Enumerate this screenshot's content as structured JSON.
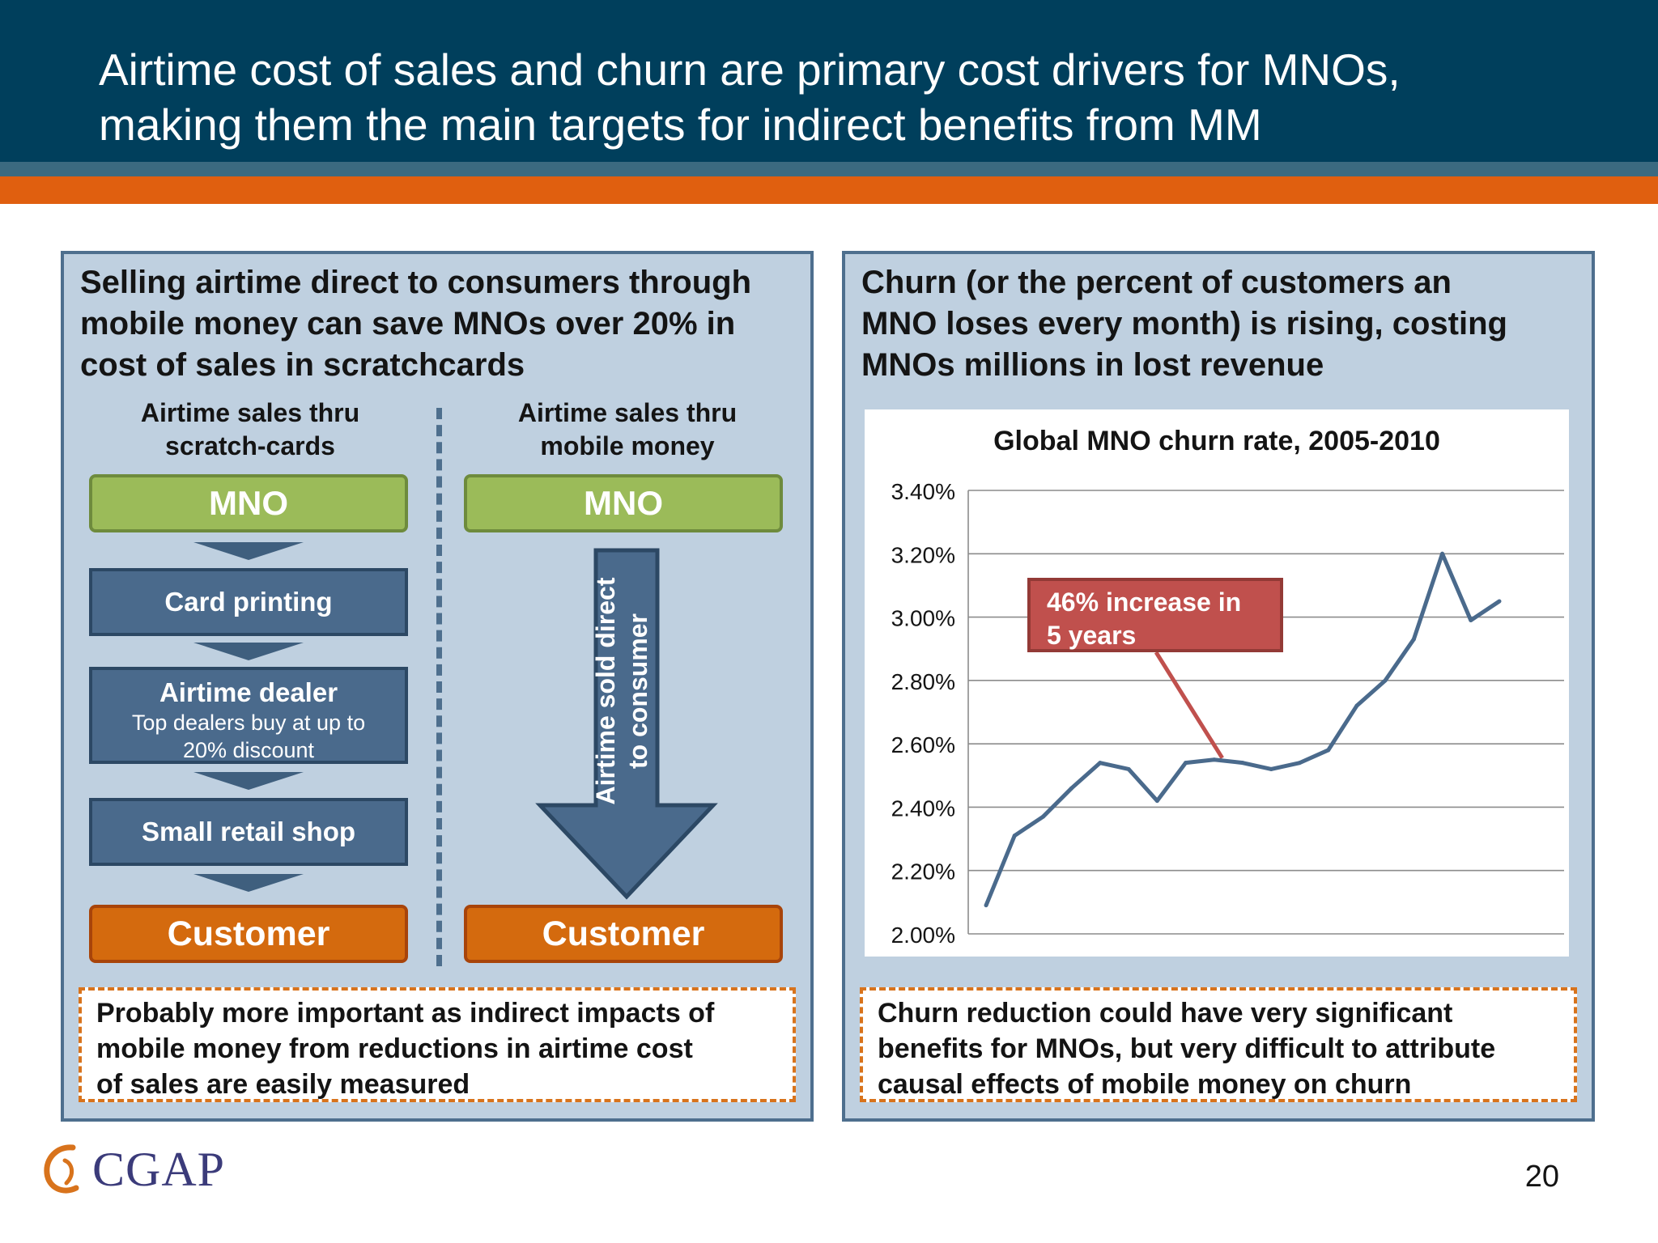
{
  "header": {
    "title_line1": "Airtime cost of sales and churn are primary cost drivers for MNOs,",
    "title_line2": "making them the main targets for indirect benefits from MM"
  },
  "left_panel": {
    "heading_line1": "Selling airtime direct to consumers through",
    "heading_line2": "mobile money can save MNOs over 20% in",
    "heading_line3": "cost of sales in scratchcards",
    "col1_head_line1": "Airtime sales thru",
    "col1_head_line2": "scratch-cards",
    "col2_head_line1": "Airtime sales thru",
    "col2_head_line2": "mobile money",
    "col1": {
      "mno": "MNO",
      "card_printing": "Card printing",
      "dealer_title": "Airtime dealer",
      "dealer_sub_line1": "Top dealers buy at up to",
      "dealer_sub_line2": "20% discount",
      "retail": "Small retail shop",
      "customer": "Customer"
    },
    "col2": {
      "mno": "MNO",
      "arrow_line1": "Airtime sold direct",
      "arrow_line2": "to consumer",
      "customer": "Customer"
    },
    "note_line1": "Probably more important as indirect impacts of",
    "note_line2": "mobile money from reductions in airtime cost",
    "note_line3": "of sales are easily measured"
  },
  "right_panel": {
    "heading_line1": "Churn (or the percent of customers an",
    "heading_line2": "MNO loses every month) is rising, costing",
    "heading_line3": "MNOs millions in lost revenue",
    "callout_line1": "46% increase in",
    "callout_line2": "5 years",
    "note_line1": "Churn reduction could have very significant",
    "note_line2": "benefits for MNOs, but very difficult to attribute",
    "note_line3": "causal effects of mobile money on churn"
  },
  "chart_data": {
    "type": "line",
    "title": "Global MNO churn rate, 2005-2010",
    "xlabel": "",
    "ylabel": "",
    "ylim": [
      2.0,
      3.4
    ],
    "y_ticks": [
      "2.00%",
      "2.20%",
      "2.40%",
      "2.60%",
      "2.80%",
      "3.00%",
      "3.20%",
      "3.40%"
    ],
    "grid": true,
    "series": [
      {
        "values": [
          2.09,
          2.31,
          2.37,
          2.46,
          2.54,
          2.52,
          2.42,
          2.54,
          2.55,
          2.54,
          2.52,
          2.54,
          2.58,
          2.72,
          2.8,
          2.93,
          3.2,
          2.99,
          3.05
        ],
        "color": "#4a6a8c"
      }
    ],
    "callout_point_index": 8,
    "callout_color": "#c0504d"
  },
  "footer": {
    "logo_text": "CGAP",
    "page_number": "20"
  },
  "colors": {
    "header_bg": "#003f5c",
    "accent_orange": "#e05f0f",
    "mno_green": "#9bbb59",
    "process_blue": "#4a6a8c",
    "customer_orange": "#d46a0e"
  }
}
